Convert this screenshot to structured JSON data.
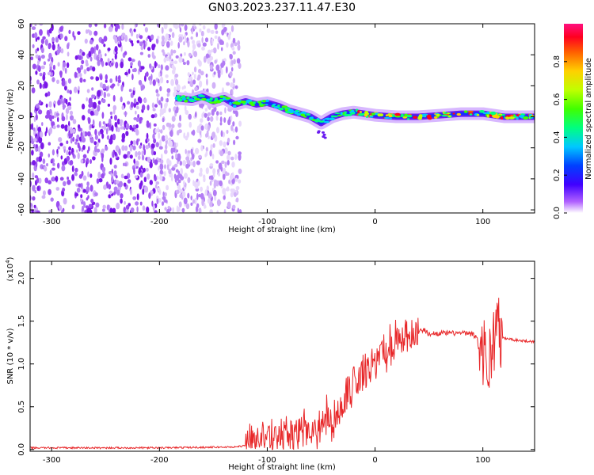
{
  "figure_title": "GN03.2023.237.11.47.E30",
  "chart_data": [
    {
      "type": "heatmap",
      "title": "",
      "xlabel": "Height of straight line (km)",
      "ylabel": "Frequency (Hz)",
      "xlim": [
        -320,
        148
      ],
      "ylim": [
        -62,
        60
      ],
      "x_ticks": [
        "-300",
        "-200",
        "-100",
        "0",
        "100"
      ],
      "y_ticks": [
        "60",
        "40",
        "20",
        "0",
        "-20",
        "-40",
        "-60"
      ],
      "colorbar": {
        "label": "Normalized spectral amplitude",
        "range": [
          0.0,
          1.0
        ],
        "ticks": [
          "0.0",
          "0.2",
          "0.4",
          "0.6",
          "0.8"
        ],
        "colormap": [
          "#ffffff",
          "#b060ff",
          "#4000ff",
          "#0040ff",
          "#00c8ff",
          "#00ff80",
          "#40ff00",
          "#c0ff00",
          "#ffd000",
          "#ff6000",
          "#ff0020",
          "#ff1080"
        ]
      },
      "noise_region_x": [
        -320,
        -125
      ],
      "trace": {
        "x": [
          -185,
          -170,
          -160,
          -150,
          -140,
          -130,
          -120,
          -110,
          -100,
          -90,
          -80,
          -70,
          -60,
          -50,
          -40,
          -30,
          -20,
          -10,
          0,
          20,
          40,
          60,
          80,
          100,
          120,
          148
        ],
        "y": [
          12,
          11,
          13,
          10,
          12,
          8,
          10,
          8,
          9,
          7,
          4,
          2,
          0,
          -4,
          0,
          2,
          3,
          2,
          1,
          0,
          0,
          1,
          2,
          2,
          0,
          0
        ]
      }
    },
    {
      "type": "line",
      "title": "",
      "xlabel": "Height of straight line (km)",
      "ylabel": "SNR (10 * v/v)",
      "yscale_label": "(x10",
      "yscale_exp": "4",
      "xlim": [
        -320,
        148
      ],
      "ylim": [
        -0.02,
        2.2
      ],
      "x_ticks": [
        "-300",
        "-200",
        "-100",
        "0",
        "100"
      ],
      "y_ticks": [
        "0.0",
        "0.5",
        "1.0",
        "1.5",
        "2.0"
      ],
      "color": "#e8282a",
      "series": [
        {
          "x": [
            -320,
            -200,
            -130,
            -110,
            -100,
            -90,
            -80,
            -70,
            -60,
            -50,
            -45,
            -40,
            -35,
            -30,
            -25,
            -20,
            -15,
            -10,
            0,
            10,
            20,
            30,
            40,
            45,
            50,
            60,
            70,
            80,
            90,
            95,
            100,
            104,
            108,
            112,
            116,
            120,
            130,
            148
          ],
          "y": [
            0.02,
            0.02,
            0.03,
            0.06,
            0.12,
            0.15,
            0.18,
            0.2,
            0.22,
            0.25,
            0.4,
            0.3,
            0.35,
            0.55,
            0.65,
            0.75,
            0.85,
            0.9,
            1.0,
            1.12,
            1.25,
            1.35,
            1.37,
            1.4,
            1.35,
            1.36,
            1.36,
            1.36,
            1.35,
            1.3,
            1.2,
            1.0,
            1.1,
            1.5,
            1.3,
            1.3,
            1.28,
            1.26
          ]
        }
      ]
    }
  ]
}
